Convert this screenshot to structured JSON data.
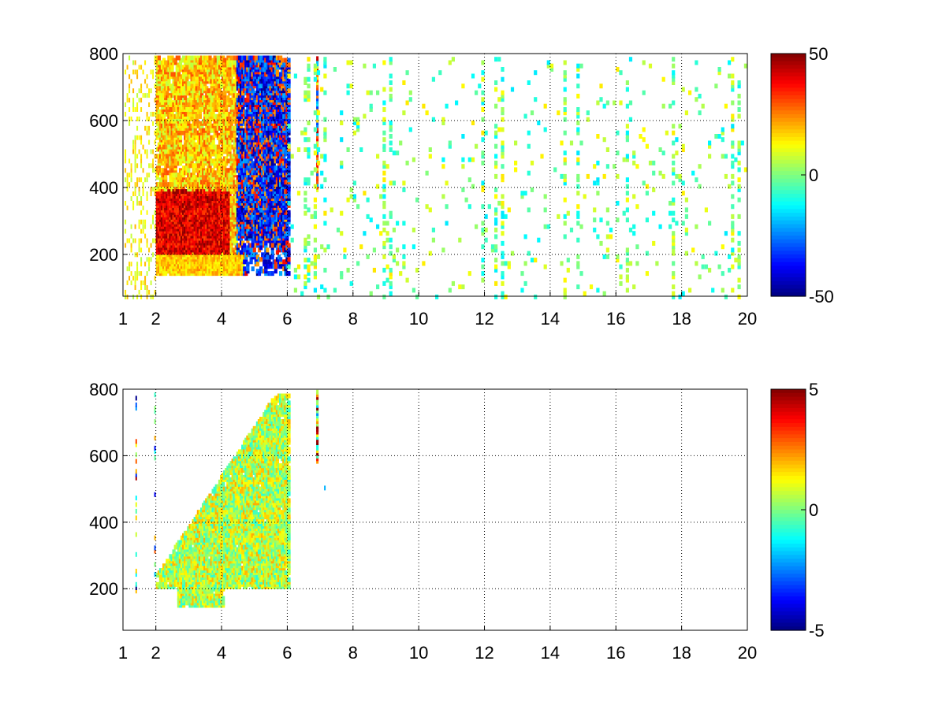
{
  "chart_data": [
    {
      "type": "heatmap",
      "title": "",
      "xlabel": "",
      "ylabel": "",
      "xlim": [
        1,
        20
      ],
      "ylim": [
        75,
        800
      ],
      "x_ticks": [
        1,
        2,
        4,
        6,
        8,
        10,
        12,
        14,
        16,
        18,
        20
      ],
      "x_tick_labels": [
        "1",
        "2",
        "4",
        "6",
        "8",
        "10",
        "12",
        "14",
        "16",
        "18",
        "20"
      ],
      "y_ticks": [
        200,
        400,
        600,
        800
      ],
      "y_tick_labels": [
        "200",
        "400",
        "600",
        "800"
      ],
      "grid": true,
      "colormap": "jet",
      "colorbar": {
        "min": -50,
        "max": 50,
        "tick_labels": [
          "50",
          "0",
          "-50"
        ]
      },
      "features": [
        {
          "note": "strong positive band",
          "x": [
            2.0,
            4.2
          ],
          "y": [
            210,
            400
          ],
          "value": 45
        },
        {
          "note": "moderate positive",
          "x": [
            2.0,
            4.6
          ],
          "y": [
            150,
            800
          ],
          "value": 18
        },
        {
          "note": "negative band",
          "x": [
            4.2,
            6.0
          ],
          "y": [
            200,
            800
          ],
          "value": -35
        },
        {
          "note": "thin stripe",
          "x": [
            6.85,
            6.95
          ],
          "y": [
            500,
            800
          ],
          "value": 20
        },
        {
          "note": "sparse noise",
          "x": [
            6.0,
            20.0
          ],
          "y": [
            75,
            800
          ],
          "value": 0
        }
      ]
    },
    {
      "type": "heatmap",
      "title": "",
      "xlabel": "",
      "ylabel": "",
      "xlim": [
        1,
        20
      ],
      "ylim": [
        75,
        800
      ],
      "x_ticks": [
        1,
        2,
        4,
        6,
        8,
        10,
        12,
        14,
        16,
        18,
        20
      ],
      "x_tick_labels": [
        "1",
        "2",
        "4",
        "6",
        "8",
        "10",
        "12",
        "14",
        "16",
        "18",
        "20"
      ],
      "y_ticks": [
        200,
        400,
        600,
        800
      ],
      "y_tick_labels": [
        "200",
        "400",
        "600",
        "800"
      ],
      "grid": true,
      "colormap": "jet",
      "colorbar": {
        "min": -5,
        "max": 5,
        "tick_labels": [
          "5",
          "0",
          "-5"
        ]
      },
      "features": [
        {
          "note": "main blob",
          "x": [
            2.0,
            6.0
          ],
          "y": [
            150,
            780
          ],
          "value": 0.5
        },
        {
          "note": "thin stripe",
          "x": [
            6.85,
            6.95
          ],
          "y": [
            590,
            800
          ],
          "value": 2
        },
        {
          "note": "edge stripes",
          "x": [
            1.3,
            2.0
          ],
          "y": [
            200,
            800
          ],
          "value": 0
        }
      ]
    }
  ]
}
